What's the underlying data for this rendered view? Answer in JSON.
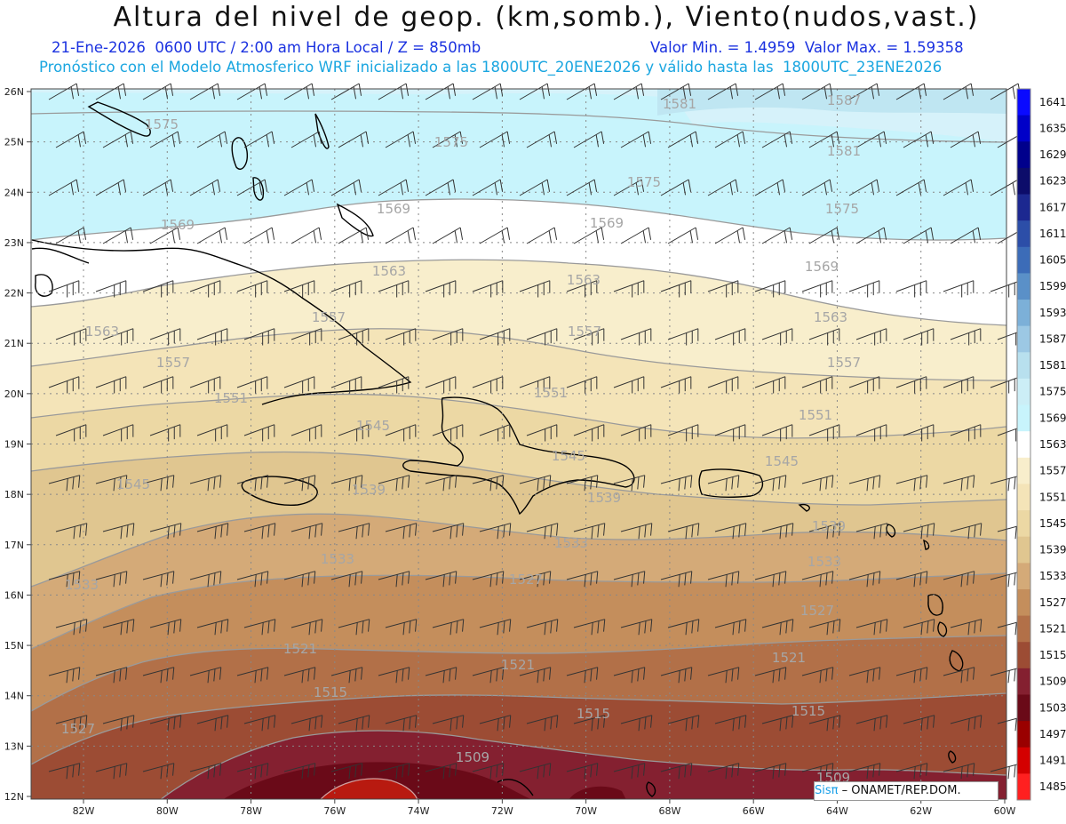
{
  "header": {
    "title": "Altura del nivel de geop. (km,somb.), Viento(nudos,vast.)",
    "line1_left": "21-Ene-2026  0600 UTC / 2:00 am Hora Local / Z = 850mb",
    "line1_right": "Valor Min. = 1.4959  Valor Max. = 1.59358",
    "line2": "Pronóstico con el Modelo Atmosferico WRF inicializado a las 1800UTC_20ENE2026 y válido hasta las  1800UTC_23ENE2026"
  },
  "axes": {
    "lat_labels": [
      "26N",
      "25N",
      "24N",
      "23N",
      "22N",
      "21N",
      "20N",
      "19N",
      "18N",
      "17N",
      "16N",
      "15N",
      "14N",
      "13N",
      "12N"
    ],
    "lon_labels": [
      "82W",
      "80W",
      "78W",
      "76W",
      "74W",
      "72W",
      "70W",
      "68W",
      "66W",
      "64W",
      "62W",
      "60W"
    ]
  },
  "colorbar": {
    "levels": [
      "1641",
      "1635",
      "1629",
      "1623",
      "1617",
      "1611",
      "1605",
      "1599",
      "1593",
      "1587",
      "1581",
      "1575",
      "1569",
      "1563",
      "1557",
      "1551",
      "1545",
      "1539",
      "1533",
      "1527",
      "1521",
      "1515",
      "1509",
      "1503",
      "1497",
      "1491",
      "1485"
    ],
    "colors": [
      "#0a0aff",
      "#0000c8",
      "#00008c",
      "#0c0c6a",
      "#1c2890",
      "#2c4ea8",
      "#3c6cb8",
      "#5a90c8",
      "#7cb0d8",
      "#9cc8e4",
      "#b8e0ee",
      "#cceef6",
      "#c8f4fc",
      "#ffffff",
      "#f8eecc",
      "#f4e4b8",
      "#ecd8a4",
      "#e0c690",
      "#d4aa78",
      "#c48e5c",
      "#b27048",
      "#9c4c34",
      "#842030",
      "#6a0a18",
      "#9a0000",
      "#d40000",
      "#ff2020"
    ]
  },
  "contour_labels": [
    "1587",
    "1581",
    "1575",
    "1569",
    "1563",
    "1557",
    "1551",
    "1545",
    "1539",
    "1533",
    "1527",
    "1521",
    "1515",
    "1509"
  ],
  "footer": {
    "logo_mark": "Sisπ",
    "logo_text": "– ONAMET/REP.DOM."
  }
}
